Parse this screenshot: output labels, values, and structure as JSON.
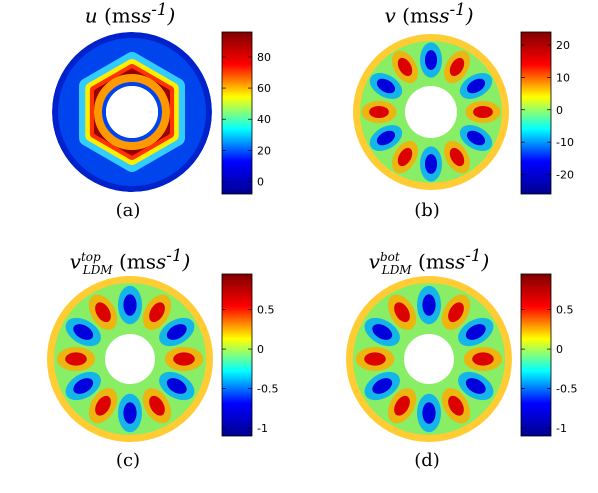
{
  "panels": [
    {
      "id": "a",
      "title_main": "u",
      "title_unit": "(ms",
      "label": "(a)",
      "ticks": [
        "80",
        "60",
        "40",
        "20",
        "0"
      ],
      "tick_vals": [
        80,
        60,
        40,
        20,
        0
      ],
      "range": [
        -8,
        96
      ]
    },
    {
      "id": "b",
      "title_main": "v",
      "title_unit": "(ms",
      "label": "(b)",
      "ticks": [
        "20",
        "10",
        "0",
        "-10",
        "-20"
      ],
      "tick_vals": [
        20,
        10,
        0,
        -10,
        -20
      ],
      "range": [
        -26,
        24
      ]
    },
    {
      "id": "c",
      "title_main": "v",
      "title_sup": "top",
      "title_sub": "LDM",
      "title_unit": "(ms",
      "label": "(c)",
      "ticks": [
        "0.5",
        "0",
        "-0.5",
        "-1"
      ],
      "tick_vals": [
        0.5,
        0,
        -0.5,
        -1
      ],
      "range": [
        -1.1,
        0.95
      ]
    },
    {
      "id": "d",
      "title_main": "v",
      "title_sup": "bot",
      "title_sub": "LDM",
      "title_unit": "(ms",
      "label": "(d)",
      "ticks": [
        "0.5",
        "0",
        "-0.5",
        "-1"
      ],
      "tick_vals": [
        0.5,
        0,
        -0.5,
        -1
      ],
      "range": [
        -1.1,
        0.95
      ]
    }
  ],
  "unit_exp": "-1",
  "colors": {
    "jet": [
      "#00008f",
      "#0000ff",
      "#00ffff",
      "#ffff00",
      "#ff0000",
      "#800000"
    ]
  }
}
